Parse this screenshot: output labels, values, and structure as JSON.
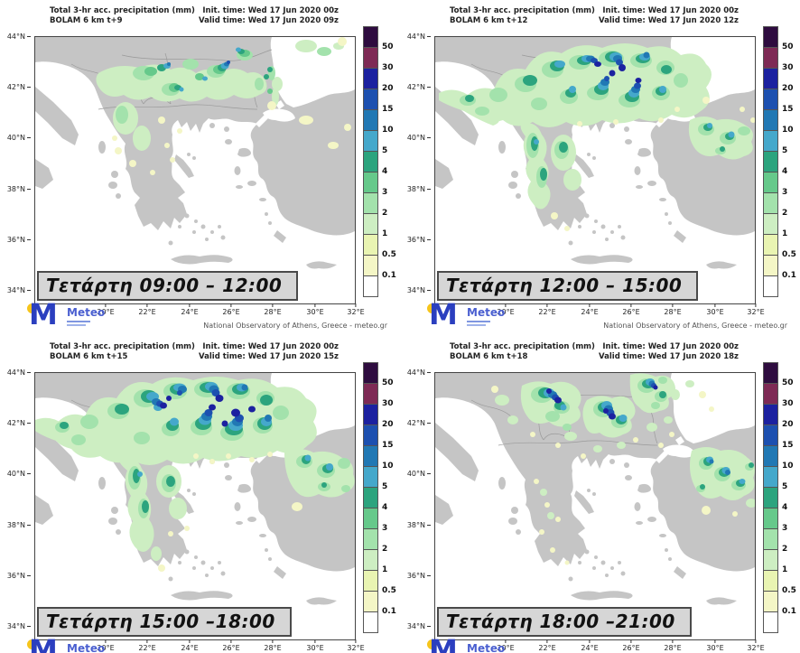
{
  "attribution": "National Observatory of Athens, Greece - meteo.gr",
  "logo": {
    "m": "M",
    "brand": "Meteo"
  },
  "legend": {
    "values": [
      "50",
      "30",
      "20",
      "15",
      "10",
      "5",
      "4",
      "3",
      "2",
      "1",
      "0.5",
      "0.1"
    ],
    "colors_top_to_bottom": [
      "#2e0c3f",
      "#7e2a55",
      "#1c21a0",
      "#1d50b0",
      "#2178b4",
      "#45a8cb",
      "#2ca47e",
      "#66c98b",
      "#a3e2ac",
      "#cdeec2",
      "#e9f4b2",
      "#f4f6c6",
      "#ffffff"
    ]
  },
  "axes": {
    "lat": [
      "44°N",
      "42°N",
      "40°N",
      "38°N",
      "36°N",
      "34°N"
    ],
    "lon": [
      "20°E",
      "22°E",
      "24°E",
      "26°E",
      "28°E",
      "30°E",
      "32°E"
    ]
  },
  "map_colors": {
    "land": "#c5c5c5",
    "sea": "#ffffff",
    "border": "#9a9a9a"
  },
  "panels": [
    {
      "title": "Total 3-hr acc. precipitation (mm)",
      "model": "BOLAM 6 km t+9",
      "init": "Init. time: Wed 17 Jun 2020 00z",
      "valid": "Valid time: Wed 17 Jun 2020 09z",
      "time_label": "Τετάρτη 09:00 – 12:00"
    },
    {
      "title": "Total 3-hr acc. precipitation (mm)",
      "model": "BOLAM 6 km t+12",
      "init": "Init. time: Wed 17 Jun 2020 00z",
      "valid": "Valid time: Wed 17 Jun 2020 12z",
      "time_label": "Τετάρτη 12:00 – 15:00"
    },
    {
      "title": "Total 3-hr acc. precipitation (mm)",
      "model": "BOLAM 6 km t+15",
      "init": "Init. time: Wed 17 Jun 2020 00z",
      "valid": "Valid time: Wed 17 Jun 2020 15z",
      "time_label": "Τετάρτη 15:00 –18:00"
    },
    {
      "title": "Total 3-hr acc. precipitation (mm)",
      "model": "BOLAM 6 km t+18",
      "init": "Init. time: Wed 17 Jun 2020 00z",
      "valid": "Valid time: Wed 17 Jun 2020 18z",
      "time_label": "Τετάρτη 18:00 –21:00"
    }
  ]
}
